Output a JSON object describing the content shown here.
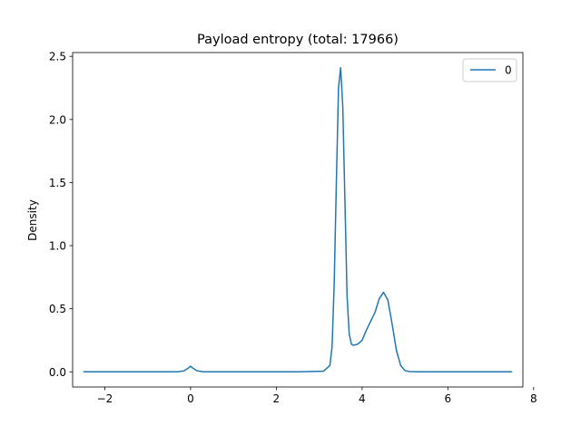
{
  "chart_data": {
    "type": "line",
    "title": "Payload entropy (total: 17966)",
    "xlabel": "",
    "ylabel": "Density",
    "xlim": [
      -2.75,
      7.75
    ],
    "ylim": [
      -0.12,
      2.53
    ],
    "xticks": [
      -2,
      0,
      2,
      4,
      6,
      8
    ],
    "xtick_labels": [
      "−2",
      "0",
      "2",
      "4",
      "6",
      "8"
    ],
    "yticks": [
      0.0,
      0.5,
      1.0,
      1.5,
      2.0,
      2.5
    ],
    "ytick_labels": [
      "0.0",
      "0.5",
      "1.0",
      "1.5",
      "2.0",
      "2.5"
    ],
    "grid": false,
    "legend": {
      "position": "top-right",
      "entries": [
        "0"
      ]
    },
    "series": [
      {
        "name": "0",
        "color": "#1f77b4",
        "x": [
          -2.5,
          -1.0,
          -0.3,
          -0.15,
          -0.05,
          0.0,
          0.05,
          0.15,
          0.3,
          0.6,
          1.5,
          2.5,
          3.1,
          3.25,
          3.3,
          3.35,
          3.4,
          3.45,
          3.5,
          3.55,
          3.6,
          3.65,
          3.7,
          3.75,
          3.8,
          3.9,
          4.0,
          4.1,
          4.2,
          4.3,
          4.4,
          4.5,
          4.6,
          4.7,
          4.8,
          4.9,
          5.0,
          5.1,
          5.3,
          6.0,
          7.5
        ],
        "y": [
          0.0,
          0.0,
          0.0,
          0.008,
          0.03,
          0.045,
          0.03,
          0.008,
          0.0,
          0.0,
          0.0,
          0.0,
          0.005,
          0.05,
          0.2,
          0.7,
          1.5,
          2.25,
          2.41,
          2.1,
          1.35,
          0.6,
          0.3,
          0.22,
          0.21,
          0.22,
          0.25,
          0.33,
          0.4,
          0.47,
          0.58,
          0.63,
          0.57,
          0.38,
          0.17,
          0.05,
          0.01,
          0.002,
          0.0,
          0.0,
          0.0
        ]
      }
    ]
  }
}
